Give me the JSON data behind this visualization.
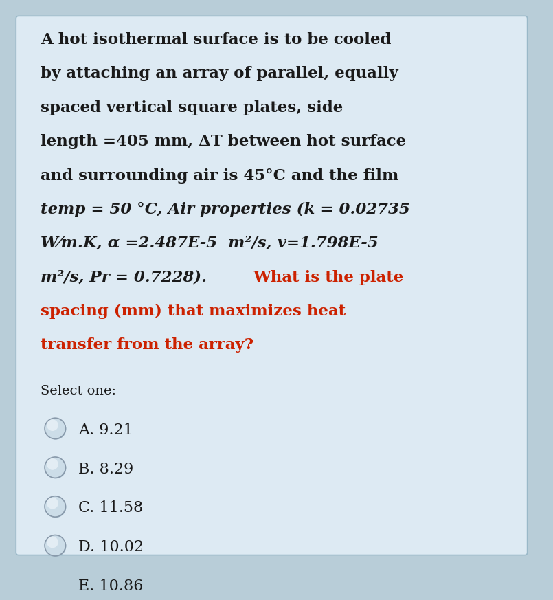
{
  "bg_color": "#ddeaf3",
  "outer_bg": "#b8cdd8",
  "text_color_black": "#1a1a1a",
  "text_color_red": "#cc2200",
  "lines": [
    {
      "text": "A hot isothermal surface is to be cooled",
      "style": "bold",
      "color": "black"
    },
    {
      "text": "by attaching an array of parallel, equally",
      "style": "bold",
      "color": "black"
    },
    {
      "text": "spaced vertical square plates, side",
      "style": "bold",
      "color": "black"
    },
    {
      "text": "length =405 mm, ΔT between hot surface",
      "style": "bold",
      "color": "black"
    },
    {
      "text": "and surrounding air is 45°C and the film",
      "style": "bold",
      "color": "black"
    },
    {
      "text": "temp = 50 °C, Air ",
      "style": "bold_italic",
      "color": "black",
      "continues": true
    },
    {
      "text": "W⁄m.K, α =2.487E-5  m²/s, v=1.798E-5",
      "style": "bold_italic",
      "color": "black"
    },
    {
      "text": "m²/s, Pr = 0.7228). ",
      "style": "bold_italic",
      "color": "black",
      "continues": true
    }
  ],
  "line6_parts": [
    {
      "text": "temp = 50 °C, Air ",
      "style": "bold_italic",
      "color": "black"
    },
    {
      "text": "properties (k = 0.02735",
      "style": "bold_italic",
      "color": "black"
    }
  ],
  "line8_parts": [
    {
      "text": "m²/s, Pr = 0.7228). ",
      "style": "bold_italic",
      "color": "black"
    },
    {
      "text": "What is the plate",
      "style": "bold",
      "color": "red"
    }
  ],
  "simple_lines": [
    {
      "text": "A hot isothermal surface is to be cooled",
      "style": "bold",
      "color": "black"
    },
    {
      "text": "by attaching an array of parallel, equally",
      "style": "bold",
      "color": "black"
    },
    {
      "text": "spaced vertical square plates, side",
      "style": "bold",
      "color": "black"
    },
    {
      "text": "length =405 mm, ΔT between hot surface",
      "style": "bold",
      "color": "black"
    },
    {
      "text": "and surrounding air is 45°C and the film",
      "style": "bold",
      "color": "black"
    }
  ],
  "line6": "temp = 50 °C, Air properties (k = 0.02735",
  "line7": "W⁄m.K, α =2.487E-5  m²/s, v=1.798E-5",
  "line8_italic": "m²/s, Pr = 0.7228). ",
  "line8_red": "What is the plate",
  "line9_red": "spacing (mm) that maximizes heat",
  "line10_red": "transfer from the array?",
  "select_one": "Select one:",
  "options": [
    "A. 9.21",
    "B. 8.29",
    "C. 11.58",
    "D. 10.02",
    "E. 10.86"
  ],
  "fs_main": 16.5,
  "fs_select": 14,
  "fs_option": 16
}
